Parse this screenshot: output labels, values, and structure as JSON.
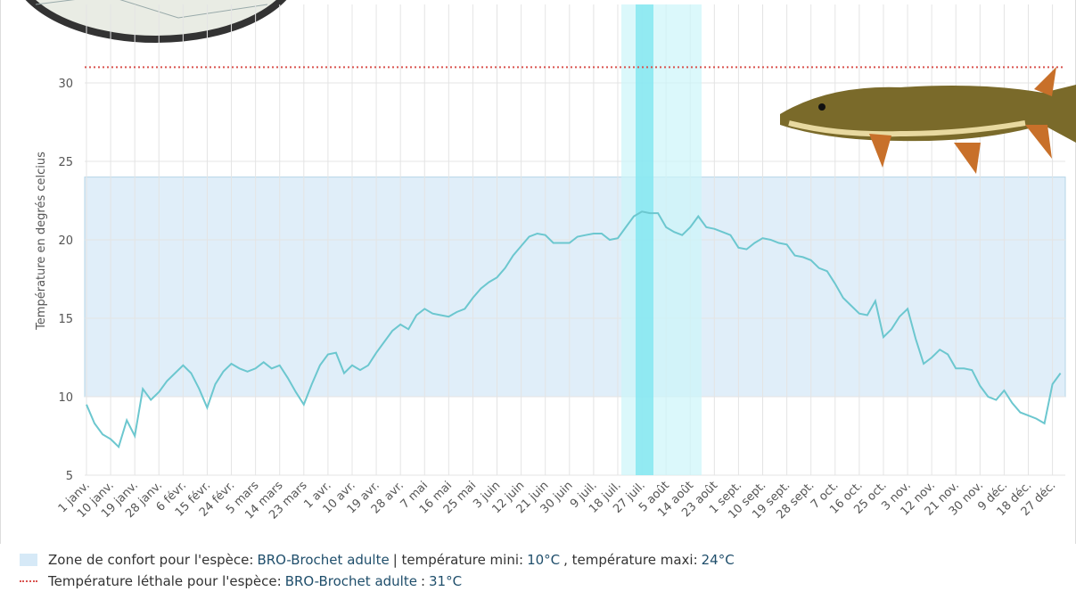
{
  "chart_data": {
    "type": "line",
    "y_label": "Température en degrés celcius",
    "categories": [
      "1 janv.",
      null,
      null,
      "10 janv.",
      null,
      null,
      "19 janv.",
      null,
      null,
      "28 janv.",
      null,
      null,
      "6 févr.",
      null,
      null,
      "15 févr.",
      null,
      null,
      "24 févr.",
      null,
      null,
      "5 mars",
      null,
      null,
      "14 mars",
      null,
      null,
      "23 mars",
      null,
      null,
      "1 avr.",
      null,
      null,
      "10 avr.",
      null,
      null,
      "19 avr.",
      null,
      null,
      "28 avr.",
      null,
      null,
      "7 mai",
      null,
      null,
      "16 mai",
      null,
      null,
      "25 mai",
      null,
      null,
      "3 juin",
      null,
      null,
      "12 juin",
      null,
      null,
      "21 juin",
      null,
      null,
      "30 juin",
      null,
      null,
      "9 juil.",
      null,
      null,
      "18 juil.",
      null,
      null,
      "27 juil.",
      null,
      null,
      "5 août",
      null,
      null,
      "14 août",
      null,
      null,
      "23 août",
      null,
      null,
      "1 sept.",
      null,
      null,
      "10 sept.",
      null,
      null,
      "19 sept.",
      null,
      null,
      "28 sept.",
      null,
      null,
      "7 oct.",
      null,
      null,
      "16 oct.",
      null,
      null,
      "25 oct.",
      null,
      null,
      "3 nov.",
      null,
      null,
      "12 nov.",
      null,
      null,
      "21 nov.",
      null,
      null,
      "30 nov.",
      null,
      null,
      "9 déc.",
      null,
      null,
      "18 déc.",
      null,
      null,
      "27 déc.",
      null
    ],
    "values": [
      9.5,
      8.3,
      7.6,
      7.3,
      6.8,
      8.5,
      7.5,
      10.5,
      9.8,
      10.3,
      11.0,
      11.5,
      12.0,
      11.5,
      10.5,
      9.3,
      10.8,
      11.6,
      12.1,
      11.8,
      11.6,
      11.8,
      12.2,
      11.8,
      12.0,
      11.2,
      10.3,
      9.5,
      10.8,
      12.0,
      12.7,
      12.8,
      11.5,
      12.0,
      11.7,
      12.0,
      12.8,
      13.5,
      14.2,
      14.6,
      14.3,
      15.2,
      15.6,
      15.3,
      15.2,
      15.1,
      15.4,
      15.6,
      16.3,
      16.9,
      17.3,
      17.6,
      18.2,
      19.0,
      19.6,
      20.2,
      20.4,
      20.3,
      19.8,
      19.8,
      19.8,
      20.2,
      20.3,
      20.4,
      20.4,
      20.0,
      20.1,
      20.8,
      21.5,
      21.8,
      21.7,
      21.7,
      20.8,
      20.5,
      20.3,
      20.8,
      21.5,
      20.8,
      20.7,
      20.5,
      20.3,
      19.5,
      19.4,
      19.8,
      20.1,
      20.0,
      19.8,
      19.7,
      19.0,
      18.9,
      18.7,
      18.2,
      18.0,
      17.2,
      16.3,
      15.8,
      15.3,
      15.2,
      16.1,
      13.8,
      14.3,
      15.1,
      15.6,
      13.7,
      12.1,
      12.5,
      13.0,
      12.7,
      11.8,
      11.8,
      11.7,
      10.7,
      10.0,
      9.8,
      10.4,
      9.6,
      9.0,
      8.8,
      8.6,
      8.3,
      10.8,
      11.5
    ],
    "color": "#6cc7cf",
    "ylim": [
      5,
      35
    ],
    "yticks": [
      5,
      10,
      15,
      20,
      25,
      30
    ],
    "grid": true,
    "comfort_zone": {
      "min": 10,
      "max": 24,
      "color": "#d6e9f7",
      "legend": [
        "Zone de confort pour l'espèce:",
        "BRO-Brochet adulte",
        "| température mini:",
        "10°C",
        ", température maxi:",
        "24°C"
      ]
    },
    "lethal": {
      "value": 31,
      "color": "#d9534f",
      "legend": [
        "Température léthale pour l'espèce:",
        "BRO-Brochet adulte",
        ":",
        "31°C"
      ]
    }
  }
}
